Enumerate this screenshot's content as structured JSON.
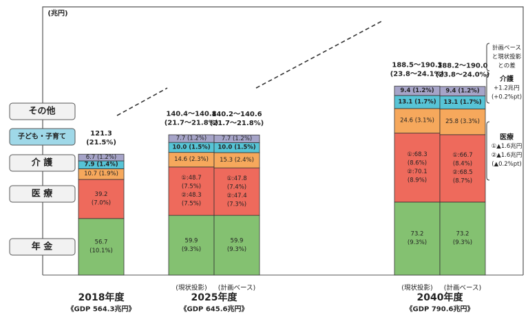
{
  "chart_data": {
    "type": "stacked-bar",
    "unit": "(兆円)",
    "ylim": [
      0,
      200
    ],
    "grid": false,
    "legend_position": "left",
    "colors": {
      "pension": "#84c171",
      "medical": "#ee6a5c",
      "care": "#f6a85c",
      "child": "#57c4d6",
      "other": "#a6a4c8",
      "diff": "#a6a4c8",
      "stroke": "#333333",
      "legend_fill": "#f2f2f2",
      "legend_child_fill": "#9fd8e8"
    },
    "legend": [
      {
        "key": "other",
        "label": "その他"
      },
      {
        "key": "child",
        "label": "子ども・子育て"
      },
      {
        "key": "care",
        "label": "介 護"
      },
      {
        "key": "medical",
        "label": "医 療"
      },
      {
        "key": "pension",
        "label": "年 金"
      }
    ],
    "groups": [
      {
        "year": "2018年度",
        "gdp": "《GDP 564.3兆円》"
      },
      {
        "year": "2025年度",
        "gdp": "《GDP 645.6兆円》"
      },
      {
        "year": "2040年度",
        "gdp": "《GDP 790.6兆円》"
      }
    ],
    "bars": [
      {
        "id": "b2018",
        "group": 0,
        "sublabel": "",
        "total_label": [
          "121.3",
          "(21.5%)"
        ],
        "segments": [
          {
            "key": "pension",
            "value": 56.7,
            "labels": [
              "56.7",
              "(10.1%)"
            ]
          },
          {
            "key": "medical",
            "value": 39.2,
            "labels": [
              "39.2",
              "(7.0%)"
            ]
          },
          {
            "key": "care",
            "value": 10.7,
            "labels": [
              "10.7 (1.9%)"
            ]
          },
          {
            "key": "child",
            "value": 7.9,
            "labels": [
              "7.9 (1.4%)"
            ],
            "bold": true
          },
          {
            "key": "other",
            "value": 6.7,
            "labels": [
              "6.7 (1.2%)"
            ]
          }
        ]
      },
      {
        "id": "b2025a",
        "group": 1,
        "sublabel": "(現状投影)",
        "total_label": [
          "140.4～140.8",
          "(21.7～21.8%)"
        ],
        "segments": [
          {
            "key": "pension",
            "value": 59.9,
            "labels": [
              "59.9",
              "(9.3%)"
            ]
          },
          {
            "key": "medical",
            "value": 48.5,
            "labels": [
              "①:48.7",
              "(7.5%)",
              "②:48.3",
              "(7.5%)"
            ]
          },
          {
            "key": "care",
            "value": 14.6,
            "labels": [
              "14.6 (2.3%)"
            ]
          },
          {
            "key": "child",
            "value": 10.0,
            "labels": [
              "10.0 (1.5%)"
            ],
            "bold": true
          },
          {
            "key": "other",
            "value": 7.7,
            "labels": [
              "7.7 (1.2%)"
            ]
          }
        ]
      },
      {
        "id": "b2025b",
        "group": 1,
        "sublabel": "(計画ベース)",
        "total_label": [
          "140.2～140.6",
          "(21.7～21.8%)"
        ],
        "segments": [
          {
            "key": "pension",
            "value": 59.9,
            "labels": [
              "59.9",
              "(9.3%)"
            ]
          },
          {
            "key": "medical",
            "value": 47.6,
            "labels": [
              "①:47.8",
              "(7.4%)",
              "②:47.4",
              "(7.3%)"
            ]
          },
          {
            "key": "care",
            "value": 15.3,
            "labels": [
              "15.3 (2.4%)"
            ]
          },
          {
            "key": "child",
            "value": 10.0,
            "labels": [
              "10.0 (1.5%)"
            ],
            "bold": true
          },
          {
            "key": "other",
            "value": 7.7,
            "labels": [
              "7.7 (1.2%)"
            ]
          }
        ]
      },
      {
        "id": "b2040a",
        "group": 2,
        "sublabel": "(現状投影)",
        "total_label": [
          "188.5～190.3",
          "(23.8～24.1%)"
        ],
        "segments": [
          {
            "key": "pension",
            "value": 73.2,
            "labels": [
              "73.2",
              "(9.3%)"
            ]
          },
          {
            "key": "medical",
            "value": 69.2,
            "labels": [
              "①:68.3",
              "(8.6%)",
              "②:70.1",
              "(8.9%)"
            ]
          },
          {
            "key": "care",
            "value": 24.6,
            "labels": [
              "24.6 (3.1%)"
            ]
          },
          {
            "key": "child",
            "value": 13.1,
            "labels": [
              "13.1 (1.7%)"
            ],
            "bold": true
          },
          {
            "key": "other",
            "value": 9.4,
            "labels": [
              "9.4 (1.2%)"
            ],
            "bold": true
          }
        ]
      },
      {
        "id": "b2040b",
        "group": 2,
        "sublabel": "(計画ベース)",
        "total_label": [
          "188.2～190.0",
          "(23.8～24.0%)"
        ],
        "segments": [
          {
            "key": "pension",
            "value": 73.2,
            "labels": [
              "73.2",
              "(9.3%)"
            ]
          },
          {
            "key": "medical",
            "value": 67.6,
            "labels": [
              "①:66.7",
              "(8.4%)",
              "②:68.5",
              "(8.7%)"
            ]
          },
          {
            "key": "care",
            "value": 25.8,
            "labels": [
              "25.8 (3.3%)"
            ]
          },
          {
            "key": "child",
            "value": 13.1,
            "labels": [
              "13.1 (1.7%)"
            ],
            "bold": true
          },
          {
            "key": "other",
            "value": 9.4,
            "labels": [
              "9.4 (1.2%)"
            ],
            "bold": true
          }
        ]
      }
    ],
    "annotations": [
      {
        "key": "diff",
        "lines": [
          "計画ベース",
          "と現状投影",
          "との差"
        ],
        "bold_first": false
      },
      {
        "key": "care",
        "lines": [
          "介護",
          "+1.2兆円",
          "(+0.2%pt)"
        ],
        "bold_first": true
      },
      {
        "key": "medical",
        "lines": [
          "医療",
          "①▲1.6兆円",
          "②▲1.6兆円",
          "(▲0.2%pt)"
        ],
        "bold_first": true
      }
    ]
  }
}
